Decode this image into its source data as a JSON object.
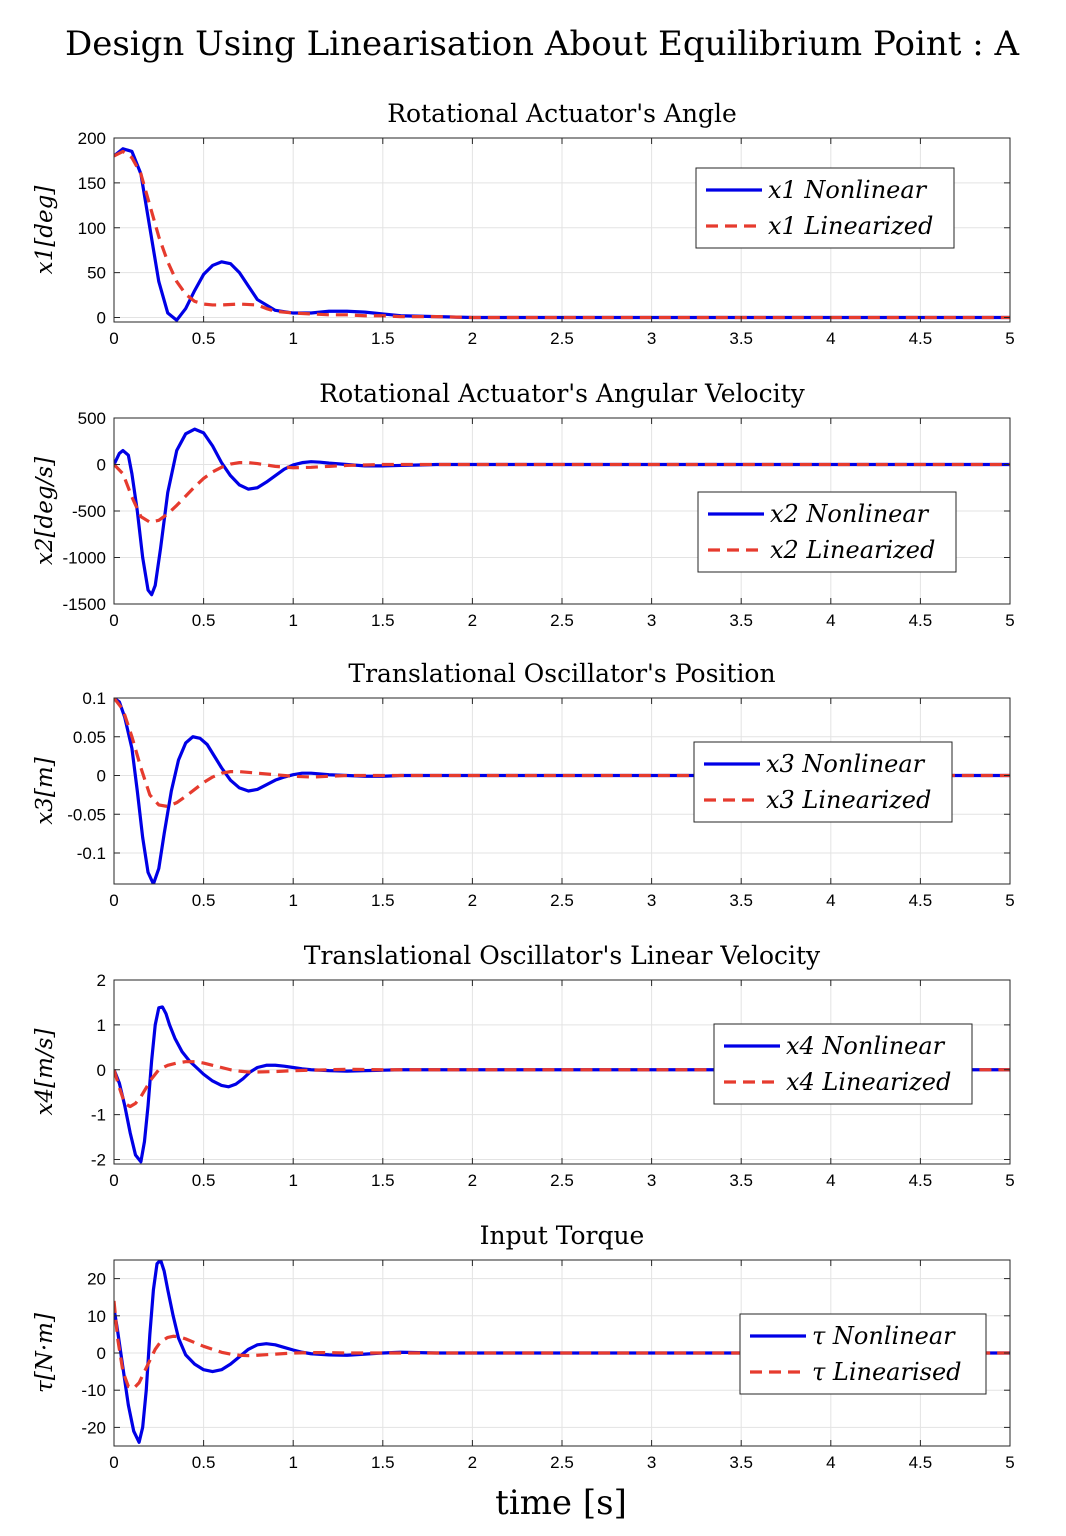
{
  "figure": {
    "title": "Design Using Linearisation About Equilibrium Point : A",
    "xlabel": "time [s]"
  },
  "colors": {
    "nonlinear": "#0000e6",
    "linear": "#e63b2e",
    "grid": "#e3e3e3",
    "axis": "#262626"
  },
  "chart_data": [
    {
      "type": "line",
      "title": "Rotational Actuator's Angle",
      "ylabel": "x1[deg]",
      "xlim": [
        0,
        5
      ],
      "ylim": [
        -5,
        200
      ],
      "xticks": [
        0,
        0.5,
        1,
        1.5,
        2,
        2.5,
        3,
        3.5,
        4,
        4.5,
        5
      ],
      "yticks": [
        0,
        50,
        100,
        150,
        200
      ],
      "grid": true,
      "legend_position": "top-right",
      "series": [
        {
          "name": "x1 Nonlinear",
          "style": "solid",
          "x": [
            0,
            0.05,
            0.1,
            0.15,
            0.2,
            0.25,
            0.3,
            0.35,
            0.4,
            0.45,
            0.5,
            0.55,
            0.6,
            0.65,
            0.7,
            0.75,
            0.8,
            0.9,
            1.0,
            1.1,
            1.2,
            1.3,
            1.4,
            1.5,
            1.6,
            1.8,
            2,
            2.5,
            3,
            5
          ],
          "y": [
            180,
            188,
            185,
            160,
            100,
            40,
            5,
            -3,
            10,
            30,
            48,
            58,
            62,
            60,
            50,
            35,
            20,
            8,
            5,
            5,
            7,
            7,
            6,
            4,
            2,
            1,
            0,
            0,
            0,
            0
          ]
        },
        {
          "name": "x1 Linearized",
          "style": "dashed",
          "x": [
            0,
            0.05,
            0.1,
            0.15,
            0.2,
            0.25,
            0.3,
            0.35,
            0.4,
            0.45,
            0.5,
            0.55,
            0.6,
            0.7,
            0.8,
            0.85,
            0.9,
            1.0,
            1.1,
            1.2,
            1.3,
            1.4,
            1.5,
            1.6,
            1.8,
            2,
            3,
            5
          ],
          "y": [
            180,
            185,
            178,
            160,
            125,
            90,
            62,
            40,
            26,
            18,
            15,
            14,
            14,
            15,
            14,
            10,
            7,
            5,
            4,
            3,
            3,
            2,
            2,
            1,
            1,
            0,
            0,
            0
          ]
        }
      ]
    },
    {
      "type": "line",
      "title": "Rotational Actuator's Angular Velocity",
      "ylabel": "x2[deg/s]",
      "xlim": [
        0,
        5
      ],
      "ylim": [
        -1500,
        500
      ],
      "xticks": [
        0,
        0.5,
        1,
        1.5,
        2,
        2.5,
        3,
        3.5,
        4,
        4.5,
        5
      ],
      "yticks": [
        -1500,
        -1000,
        -500,
        0,
        500
      ],
      "grid": true,
      "legend_position": "lower-right",
      "series": [
        {
          "name": "x2 Nonlinear",
          "style": "solid",
          "x": [
            0,
            0.03,
            0.05,
            0.08,
            0.1,
            0.13,
            0.16,
            0.19,
            0.21,
            0.23,
            0.26,
            0.3,
            0.35,
            0.4,
            0.45,
            0.5,
            0.55,
            0.6,
            0.65,
            0.7,
            0.75,
            0.8,
            0.85,
            0.9,
            0.95,
            1.0,
            1.05,
            1.1,
            1.15,
            1.2,
            1.3,
            1.4,
            1.5,
            1.6,
            1.7,
            1.8,
            2,
            2.5,
            3,
            5
          ],
          "y": [
            0,
            120,
            150,
            100,
            -100,
            -500,
            -1000,
            -1350,
            -1400,
            -1300,
            -900,
            -300,
            150,
            330,
            380,
            340,
            200,
            20,
            -120,
            -220,
            -265,
            -250,
            -190,
            -120,
            -50,
            -5,
            20,
            30,
            25,
            15,
            0,
            -15,
            -15,
            -10,
            -5,
            0,
            0,
            0,
            0,
            0
          ]
        },
        {
          "name": "x2 Linearized",
          "style": "dashed",
          "x": [
            0,
            0.05,
            0.1,
            0.15,
            0.2,
            0.25,
            0.3,
            0.35,
            0.4,
            0.45,
            0.5,
            0.55,
            0.6,
            0.65,
            0.7,
            0.75,
            0.8,
            0.85,
            0.9,
            1.0,
            1.1,
            1.2,
            1.3,
            1.4,
            1.5,
            1.6,
            1.8,
            2,
            3,
            5
          ],
          "y": [
            0,
            -100,
            -350,
            -560,
            -620,
            -600,
            -530,
            -440,
            -340,
            -240,
            -150,
            -80,
            -30,
            5,
            20,
            20,
            10,
            -5,
            -20,
            -35,
            -30,
            -20,
            -10,
            -5,
            0,
            0,
            0,
            0,
            0,
            0
          ]
        }
      ]
    },
    {
      "type": "line",
      "title": "Translational Oscillator's Position",
      "ylabel": "x3[m]",
      "xlim": [
        0,
        5
      ],
      "ylim": [
        -0.14,
        0.1
      ],
      "xticks": [
        0,
        0.5,
        1,
        1.5,
        2,
        2.5,
        3,
        3.5,
        4,
        4.5,
        5
      ],
      "yticks": [
        -0.1,
        -0.05,
        0,
        0.05,
        0.1
      ],
      "grid": true,
      "legend_position": "right",
      "series": [
        {
          "name": "x3 Nonlinear",
          "style": "solid",
          "x": [
            0,
            0.03,
            0.06,
            0.1,
            0.13,
            0.16,
            0.19,
            0.22,
            0.25,
            0.28,
            0.32,
            0.36,
            0.4,
            0.44,
            0.48,
            0.52,
            0.56,
            0.6,
            0.65,
            0.7,
            0.75,
            0.8,
            0.85,
            0.9,
            0.95,
            1.0,
            1.05,
            1.1,
            1.15,
            1.2,
            1.3,
            1.4,
            1.5,
            1.6,
            1.8,
            2,
            3,
            5
          ],
          "y": [
            0.1,
            0.095,
            0.075,
            0.035,
            -0.02,
            -0.08,
            -0.125,
            -0.14,
            -0.12,
            -0.075,
            -0.02,
            0.02,
            0.042,
            0.05,
            0.048,
            0.04,
            0.025,
            0.01,
            -0.006,
            -0.016,
            -0.02,
            -0.018,
            -0.012,
            -0.006,
            -0.002,
            0.001,
            0.003,
            0.003,
            0.002,
            0.001,
            0,
            -0.001,
            -0.001,
            0,
            0,
            0,
            0,
            0
          ]
        },
        {
          "name": "x3 Linearized",
          "style": "dashed",
          "x": [
            0,
            0.05,
            0.1,
            0.15,
            0.2,
            0.25,
            0.3,
            0.35,
            0.4,
            0.45,
            0.5,
            0.55,
            0.6,
            0.65,
            0.7,
            0.8,
            0.9,
            1.0,
            1.1,
            1.2,
            1.3,
            1.4,
            1.6,
            1.8,
            2,
            3,
            5
          ],
          "y": [
            0.1,
            0.085,
            0.05,
            0.01,
            -0.025,
            -0.038,
            -0.04,
            -0.035,
            -0.027,
            -0.018,
            -0.009,
            -0.002,
            0.003,
            0.005,
            0.005,
            0.003,
            0.001,
            -0.001,
            -0.002,
            -0.001,
            0,
            0,
            0,
            0,
            0,
            0,
            0
          ]
        }
      ]
    },
    {
      "type": "line",
      "title": "Translational Oscillator's Linear Velocity",
      "ylabel": "x4[m/s]",
      "xlim": [
        0,
        5
      ],
      "ylim": [
        -2.1,
        2
      ],
      "xticks": [
        0,
        0.5,
        1,
        1.5,
        2,
        2.5,
        3,
        3.5,
        4,
        4.5,
        5
      ],
      "yticks": [
        -2,
        -1,
        0,
        1,
        2
      ],
      "grid": true,
      "legend_position": "right",
      "series": [
        {
          "name": "x4 Nonlinear",
          "style": "solid",
          "x": [
            0,
            0.03,
            0.06,
            0.09,
            0.12,
            0.15,
            0.17,
            0.19,
            0.21,
            0.23,
            0.25,
            0.27,
            0.29,
            0.31,
            0.34,
            0.38,
            0.42,
            0.46,
            0.5,
            0.55,
            0.6,
            0.64,
            0.68,
            0.72,
            0.76,
            0.8,
            0.85,
            0.9,
            0.95,
            1.0,
            1.05,
            1.1,
            1.2,
            1.3,
            1.4,
            1.5,
            1.6,
            1.8,
            2,
            3,
            5
          ],
          "y": [
            0,
            -0.3,
            -0.8,
            -1.4,
            -1.9,
            -2.05,
            -1.6,
            -0.8,
            0.2,
            1.0,
            1.38,
            1.4,
            1.25,
            1.0,
            0.7,
            0.4,
            0.2,
            0.05,
            -0.1,
            -0.25,
            -0.35,
            -0.38,
            -0.32,
            -0.2,
            -0.05,
            0.05,
            0.1,
            0.1,
            0.08,
            0.05,
            0.02,
            0,
            -0.02,
            -0.03,
            -0.02,
            -0.01,
            0,
            0,
            0,
            0,
            0
          ]
        },
        {
          "name": "x4 Linearized",
          "style": "dashed",
          "x": [
            0,
            0.03,
            0.06,
            0.09,
            0.12,
            0.15,
            0.18,
            0.21,
            0.25,
            0.3,
            0.35,
            0.4,
            0.45,
            0.5,
            0.55,
            0.6,
            0.65,
            0.7,
            0.75,
            0.8,
            0.9,
            1.0,
            1.1,
            1.2,
            1.3,
            1.5,
            2,
            3,
            5
          ],
          "y": [
            0,
            -0.4,
            -0.75,
            -0.82,
            -0.75,
            -0.6,
            -0.4,
            -0.2,
            0,
            0.1,
            0.15,
            0.18,
            0.18,
            0.15,
            0.1,
            0.05,
            0,
            -0.03,
            -0.05,
            -0.05,
            -0.04,
            -0.02,
            -0.01,
            0,
            0.01,
            0,
            0,
            0,
            0
          ]
        }
      ]
    },
    {
      "type": "line",
      "title": "Input Torque",
      "ylabel": "τ[N·m]",
      "xlim": [
        0,
        5
      ],
      "ylim": [
        -25,
        25
      ],
      "xticks": [
        0,
        0.5,
        1,
        1.5,
        2,
        2.5,
        3,
        3.5,
        4,
        4.5,
        5
      ],
      "yticks": [
        -20,
        -10,
        0,
        10,
        20
      ],
      "grid": true,
      "legend_position": "right",
      "series": [
        {
          "name": "τ Nonlinear",
          "style": "solid",
          "x": [
            0,
            0.02,
            0.05,
            0.08,
            0.11,
            0.14,
            0.16,
            0.18,
            0.2,
            0.22,
            0.24,
            0.26,
            0.28,
            0.3,
            0.33,
            0.36,
            0.4,
            0.45,
            0.5,
            0.55,
            0.6,
            0.65,
            0.7,
            0.75,
            0.8,
            0.85,
            0.9,
            0.95,
            1.0,
            1.05,
            1.1,
            1.2,
            1.3,
            1.4,
            1.5,
            1.6,
            1.8,
            2,
            3,
            5
          ],
          "y": [
            12,
            6,
            -4,
            -14,
            -21,
            -24,
            -20,
            -10,
            5,
            17,
            24,
            25,
            22,
            17,
            10,
            4,
            -0.5,
            -3,
            -4.5,
            -5,
            -4.5,
            -3,
            -1,
            1,
            2.2,
            2.5,
            2.2,
            1.5,
            0.8,
            0.2,
            -0.2,
            -0.5,
            -0.6,
            -0.3,
            0,
            0.2,
            0,
            0,
            0,
            0
          ]
        },
        {
          "name": "τ Linearised",
          "style": "dashed",
          "x": [
            0,
            0.02,
            0.05,
            0.08,
            0.11,
            0.14,
            0.17,
            0.2,
            0.23,
            0.26,
            0.3,
            0.33,
            0.36,
            0.4,
            0.45,
            0.5,
            0.55,
            0.6,
            0.65,
            0.7,
            0.75,
            0.8,
            0.9,
            1.0,
            1.1,
            1.2,
            1.3,
            1.5,
            2,
            3,
            5
          ],
          "y": [
            14,
            4,
            -5,
            -9,
            -9.5,
            -8,
            -5,
            -2,
            1,
            3,
            4.2,
            4.5,
            4.4,
            3.8,
            2.8,
            1.8,
            1,
            0.2,
            -0.3,
            -0.6,
            -0.7,
            -0.6,
            -0.3,
            0,
            0.1,
            0.1,
            0,
            0,
            0,
            0,
            0
          ]
        }
      ]
    }
  ]
}
